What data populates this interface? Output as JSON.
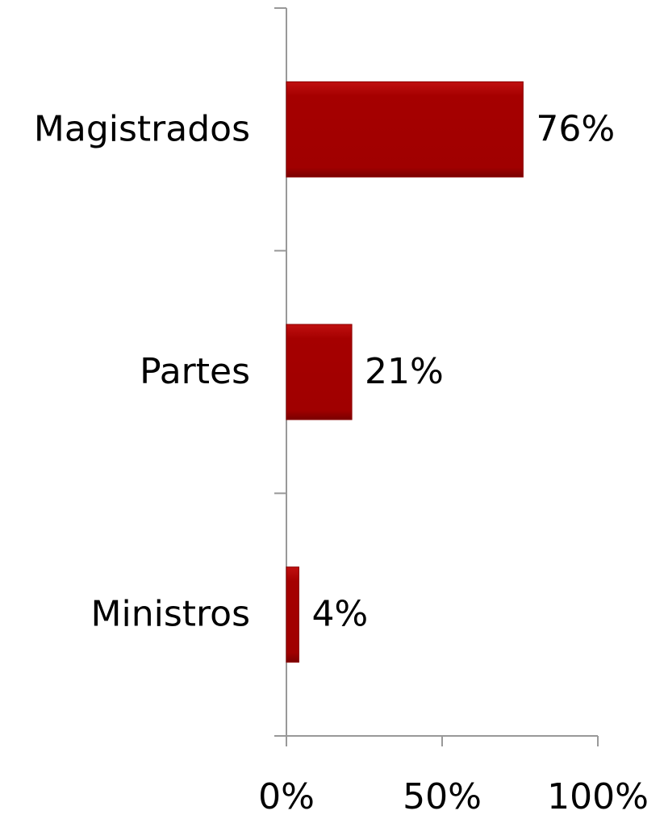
{
  "chart_data": {
    "type": "bar",
    "orientation": "horizontal",
    "categories": [
      "Magistrados",
      "Partes",
      "Ministros"
    ],
    "values": [
      76,
      21,
      4
    ],
    "value_labels": [
      "76%",
      "21%",
      "4%"
    ],
    "color": "#a50000",
    "xlim": [
      0,
      100
    ],
    "xticks": [
      {
        "value": 0,
        "label": "0%"
      },
      {
        "value": 50,
        "label": "50%"
      },
      {
        "value": 100,
        "label": "100%"
      }
    ],
    "grid": false
  }
}
